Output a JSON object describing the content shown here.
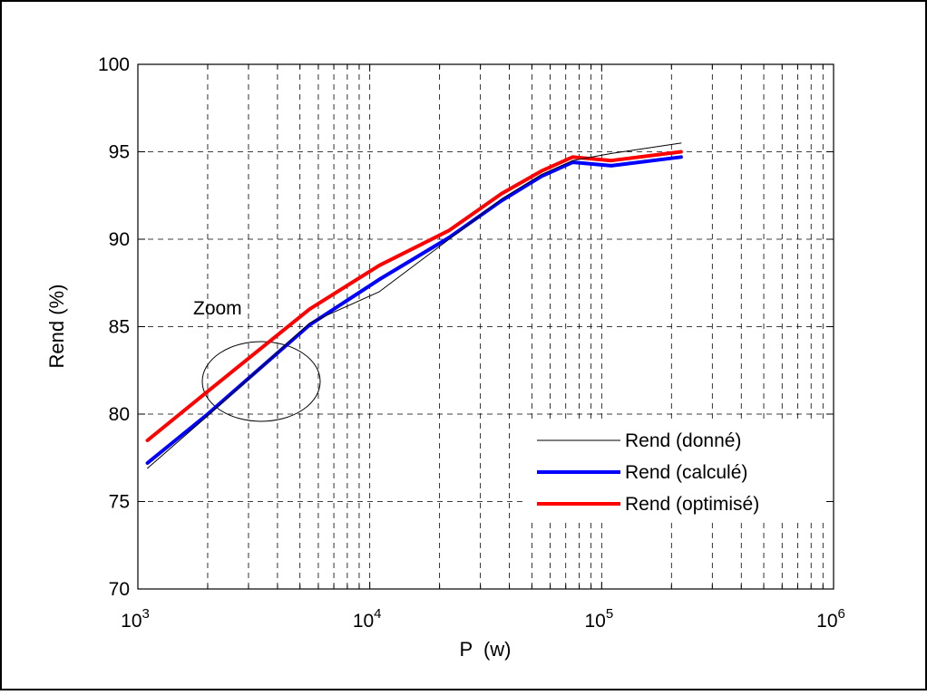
{
  "chart_data": {
    "type": "line",
    "title": "",
    "xlabel": "P  (w)",
    "ylabel": "Rend (%)",
    "x_scale": "log",
    "xlim": [
      1000,
      1000000
    ],
    "ylim": [
      70,
      100
    ],
    "y_ticks": [
      70,
      75,
      80,
      85,
      90,
      95,
      100
    ],
    "y_tick_labels": [
      "70",
      "75",
      "80",
      "85",
      "90",
      "95",
      "100"
    ],
    "x_ticks": [
      1000,
      10000,
      100000,
      1000000
    ],
    "x_tick_labels": [
      {
        "base": "10",
        "exp": "3"
      },
      {
        "base": "10",
        "exp": "4"
      },
      {
        "base": "10",
        "exp": "5"
      },
      {
        "base": "10",
        "exp": "6"
      }
    ],
    "grid": true,
    "grid_style": "dashed",
    "legend_position": "bottom-right",
    "series": [
      {
        "name": "Rend (donné)",
        "color": "#000000",
        "style": "thin",
        "x": [
          1100,
          2000,
          5500,
          11000,
          22000,
          37000,
          55000,
          75000,
          110000,
          220000
        ],
        "y": [
          76.9,
          79.9,
          85.2,
          87.0,
          90.0,
          92.3,
          93.7,
          94.5,
          94.9,
          95.5
        ]
      },
      {
        "name": "Rend (calculé)",
        "color": "#0000ff",
        "style": "thick",
        "x": [
          1100,
          2000,
          5500,
          11000,
          22000,
          37000,
          55000,
          75000,
          110000,
          220000
        ],
        "y": [
          77.2,
          80.0,
          85.1,
          87.7,
          90.1,
          92.2,
          93.6,
          94.4,
          94.2,
          94.7
        ]
      },
      {
        "name": "Rend (optimisé)",
        "color": "#ff0000",
        "style": "thick",
        "x": [
          1100,
          2000,
          5500,
          11000,
          22000,
          37000,
          55000,
          75000,
          110000,
          220000
        ],
        "y": [
          78.5,
          81.3,
          86.0,
          88.5,
          90.5,
          92.6,
          93.9,
          94.7,
          94.5,
          95.0
        ]
      }
    ],
    "annotations": [
      {
        "type": "text",
        "text": "Zoom"
      },
      {
        "type": "ellipse"
      }
    ]
  }
}
